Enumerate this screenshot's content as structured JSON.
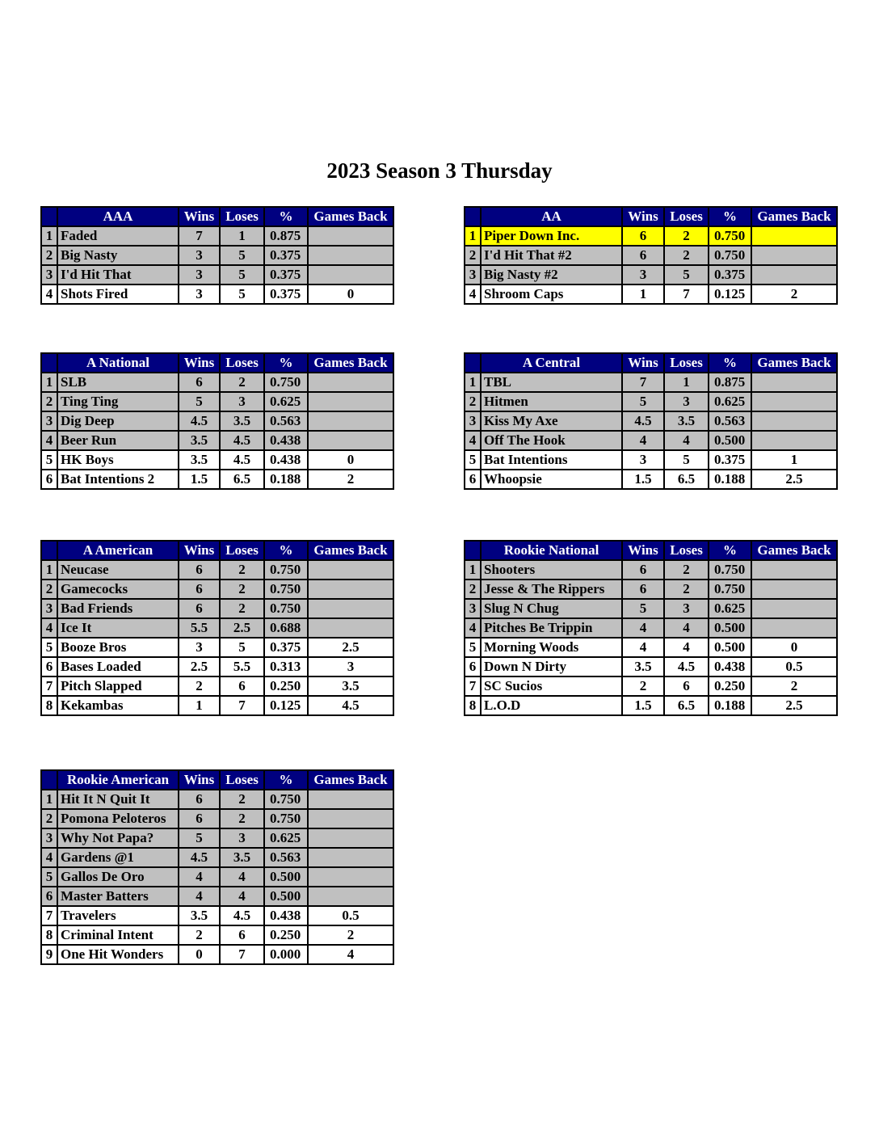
{
  "title": "2023 Season 3 Thursday",
  "columns": {
    "wins": "Wins",
    "loses": "Loses",
    "pct": "%",
    "games_back": "Games Back"
  },
  "colors": {
    "header": "#000080",
    "playoff_row": "#c0c0c0",
    "highlight": "#ffff00"
  },
  "divisions": [
    {
      "name": "AAA",
      "side": "left",
      "rows": [
        {
          "rank": "1",
          "team": "Faded",
          "wins": "7",
          "loses": "1",
          "pct": "0.875",
          "gb": "",
          "style": "gray"
        },
        {
          "rank": "2",
          "team": "Big Nasty",
          "wins": "3",
          "loses": "5",
          "pct": "0.375",
          "gb": "",
          "style": "gray"
        },
        {
          "rank": "3",
          "team": "I'd Hit That",
          "wins": "3",
          "loses": "5",
          "pct": "0.375",
          "gb": "",
          "style": "gray"
        },
        {
          "rank": "4",
          "team": "Shots Fired",
          "wins": "3",
          "loses": "5",
          "pct": "0.375",
          "gb": "0",
          "style": "white"
        }
      ]
    },
    {
      "name": "AA",
      "side": "right",
      "rows": [
        {
          "rank": "1",
          "team": "Piper Down Inc.",
          "wins": "6",
          "loses": "2",
          "pct": "0.750",
          "gb": "",
          "style": "hl"
        },
        {
          "rank": "2",
          "team": "I'd Hit That #2",
          "wins": "6",
          "loses": "2",
          "pct": "0.750",
          "gb": "",
          "style": "gray"
        },
        {
          "rank": "3",
          "team": "Big Nasty #2",
          "wins": "3",
          "loses": "5",
          "pct": "0.375",
          "gb": "",
          "style": "gray"
        },
        {
          "rank": "4",
          "team": "Shroom Caps",
          "wins": "1",
          "loses": "7",
          "pct": "0.125",
          "gb": "2",
          "style": "white"
        }
      ]
    },
    {
      "name": "A National",
      "side": "left",
      "rows": [
        {
          "rank": "1",
          "team": "SLB",
          "wins": "6",
          "loses": "2",
          "pct": "0.750",
          "gb": "",
          "style": "gray"
        },
        {
          "rank": "2",
          "team": "Ting Ting",
          "wins": "5",
          "loses": "3",
          "pct": "0.625",
          "gb": "",
          "style": "gray"
        },
        {
          "rank": "3",
          "team": "Dig Deep",
          "wins": "4.5",
          "loses": "3.5",
          "pct": "0.563",
          "gb": "",
          "style": "gray"
        },
        {
          "rank": "4",
          "team": "Beer Run",
          "wins": "3.5",
          "loses": "4.5",
          "pct": "0.438",
          "gb": "",
          "style": "gray"
        },
        {
          "rank": "5",
          "team": "HK Boys",
          "wins": "3.5",
          "loses": "4.5",
          "pct": "0.438",
          "gb": "0",
          "style": "white"
        },
        {
          "rank": "6",
          "team": "Bat Intentions 2",
          "wins": "1.5",
          "loses": "6.5",
          "pct": "0.188",
          "gb": "2",
          "style": "white"
        }
      ]
    },
    {
      "name": "A Central",
      "side": "right",
      "rows": [
        {
          "rank": "1",
          "team": "TBL",
          "wins": "7",
          "loses": "1",
          "pct": "0.875",
          "gb": "",
          "style": "gray"
        },
        {
          "rank": "2",
          "team": "Hitmen",
          "wins": "5",
          "loses": "3",
          "pct": "0.625",
          "gb": "",
          "style": "gray"
        },
        {
          "rank": "3",
          "team": "Kiss My Axe",
          "wins": "4.5",
          "loses": "3.5",
          "pct": "0.563",
          "gb": "",
          "style": "gray"
        },
        {
          "rank": "4",
          "team": "Off The Hook",
          "wins": "4",
          "loses": "4",
          "pct": "0.500",
          "gb": "",
          "style": "gray"
        },
        {
          "rank": "5",
          "team": "Bat Intentions",
          "wins": "3",
          "loses": "5",
          "pct": "0.375",
          "gb": "1",
          "style": "white"
        },
        {
          "rank": "6",
          "team": "Whoopsie",
          "wins": "1.5",
          "loses": "6.5",
          "pct": "0.188",
          "gb": "2.5",
          "style": "white"
        }
      ]
    },
    {
      "name": "A American",
      "side": "left",
      "rows": [
        {
          "rank": "1",
          "team": "Neucase",
          "wins": "6",
          "loses": "2",
          "pct": "0.750",
          "gb": "",
          "style": "gray"
        },
        {
          "rank": "2",
          "team": "Gamecocks",
          "wins": "6",
          "loses": "2",
          "pct": "0.750",
          "gb": "",
          "style": "gray"
        },
        {
          "rank": "3",
          "team": "Bad Friends",
          "wins": "6",
          "loses": "2",
          "pct": "0.750",
          "gb": "",
          "style": "gray"
        },
        {
          "rank": "4",
          "team": "Ice It",
          "wins": "5.5",
          "loses": "2.5",
          "pct": "0.688",
          "gb": "",
          "style": "gray"
        },
        {
          "rank": "5",
          "team": "Booze Bros",
          "wins": "3",
          "loses": "5",
          "pct": "0.375",
          "gb": "2.5",
          "style": "white"
        },
        {
          "rank": "6",
          "team": "Bases Loaded",
          "wins": "2.5",
          "loses": "5.5",
          "pct": "0.313",
          "gb": "3",
          "style": "white"
        },
        {
          "rank": "7",
          "team": "Pitch Slapped",
          "wins": "2",
          "loses": "6",
          "pct": "0.250",
          "gb": "3.5",
          "style": "white"
        },
        {
          "rank": "8",
          "team": "Kekambas",
          "wins": "1",
          "loses": "7",
          "pct": "0.125",
          "gb": "4.5",
          "style": "white"
        }
      ]
    },
    {
      "name": "Rookie National",
      "side": "right",
      "rows": [
        {
          "rank": "1",
          "team": "Shooters",
          "wins": "6",
          "loses": "2",
          "pct": "0.750",
          "gb": "",
          "style": "gray"
        },
        {
          "rank": "2",
          "team": "Jesse & The Rippers",
          "wins": "6",
          "loses": "2",
          "pct": "0.750",
          "gb": "",
          "style": "gray"
        },
        {
          "rank": "3",
          "team": "Slug N Chug",
          "wins": "5",
          "loses": "3",
          "pct": "0.625",
          "gb": "",
          "style": "gray"
        },
        {
          "rank": "4",
          "team": "Pitches Be Trippin",
          "wins": "4",
          "loses": "4",
          "pct": "0.500",
          "gb": "",
          "style": "gray"
        },
        {
          "rank": "5",
          "team": "Morning Woods",
          "wins": "4",
          "loses": "4",
          "pct": "0.500",
          "gb": "0",
          "style": "white"
        },
        {
          "rank": "6",
          "team": "Down N Dirty",
          "wins": "3.5",
          "loses": "4.5",
          "pct": "0.438",
          "gb": "0.5",
          "style": "white"
        },
        {
          "rank": "7",
          "team": "SC Sucios",
          "wins": "2",
          "loses": "6",
          "pct": "0.250",
          "gb": "2",
          "style": "white"
        },
        {
          "rank": "8",
          "team": "L.O.D",
          "wins": "1.5",
          "loses": "6.5",
          "pct": "0.188",
          "gb": "2.5",
          "style": "white"
        }
      ]
    },
    {
      "name": "Rookie American",
      "side": "left",
      "rows": [
        {
          "rank": "1",
          "team": "Hit It N Quit It",
          "wins": "6",
          "loses": "2",
          "pct": "0.750",
          "gb": "",
          "style": "gray"
        },
        {
          "rank": "2",
          "team": "Pomona Peloteros",
          "wins": "6",
          "loses": "2",
          "pct": "0.750",
          "gb": "",
          "style": "gray"
        },
        {
          "rank": "3",
          "team": "Why Not Papa?",
          "wins": "5",
          "loses": "3",
          "pct": "0.625",
          "gb": "",
          "style": "gray"
        },
        {
          "rank": "4",
          "team": "Gardens @1",
          "wins": "4.5",
          "loses": "3.5",
          "pct": "0.563",
          "gb": "",
          "style": "gray"
        },
        {
          "rank": "5",
          "team": "Gallos De Oro",
          "wins": "4",
          "loses": "4",
          "pct": "0.500",
          "gb": "",
          "style": "gray"
        },
        {
          "rank": "6",
          "team": "Master Batters",
          "wins": "4",
          "loses": "4",
          "pct": "0.500",
          "gb": "",
          "style": "gray"
        },
        {
          "rank": "7",
          "team": "Travelers",
          "wins": "3.5",
          "loses": "4.5",
          "pct": "0.438",
          "gb": "0.5",
          "style": "white"
        },
        {
          "rank": "8",
          "team": "Criminal Intent",
          "wins": "2",
          "loses": "6",
          "pct": "0.250",
          "gb": "2",
          "style": "white"
        },
        {
          "rank": "9",
          "team": "One Hit Wonders",
          "wins": "0",
          "loses": "7",
          "pct": "0.000",
          "gb": "4",
          "style": "white"
        }
      ]
    }
  ]
}
